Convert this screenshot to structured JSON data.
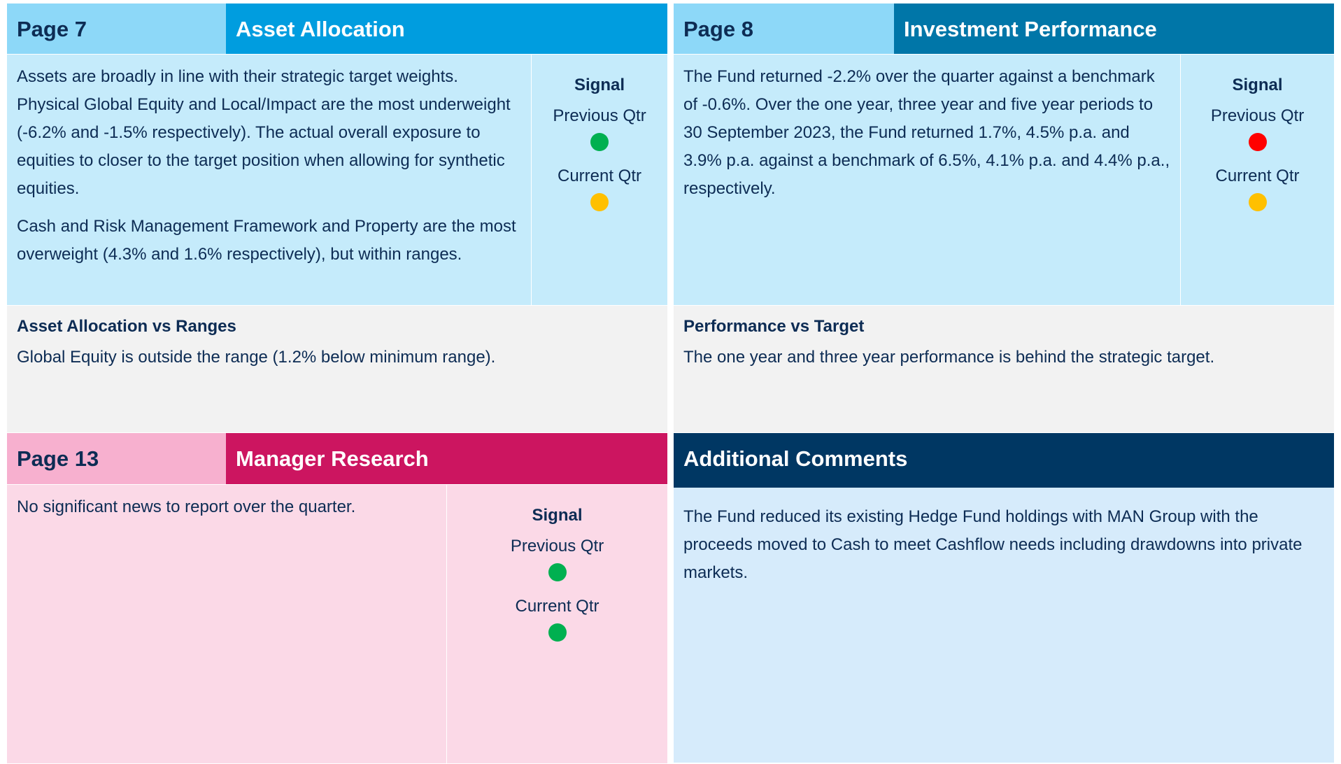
{
  "panels": [
    {
      "page": "Page 7",
      "title": "Asset Allocation",
      "paragraphs": [
        "Assets are broadly in line with their strategic target weights. Physical Global Equity and Local/Impact are the most underweight (-6.2% and -1.5% respectively). The actual overall exposure to equities to closer to the target position when allowing for synthetic equities.",
        "Cash and Risk Management Framework and Property are the most overweight (4.3% and 1.6% respectively), but within ranges."
      ],
      "signal": "Signal",
      "previous": "Previous Qtr",
      "previous_color": "#00b050",
      "current": "Current Qtr",
      "current_color": "#ffc000",
      "subheading": "Asset Allocation vs Ranges",
      "subtext": "Global Equity is outside the range (1.2% below minimum range)."
    },
    {
      "page": "Page 8",
      "title": "Investment Performance",
      "paragraphs": [
        "The Fund returned -2.2% over the quarter against a benchmark of -0.6%. Over the one year, three year and five year periods to 30 September 2023, the Fund returned 1.7%, 4.5% p.a. and 3.9% p.a. against a benchmark of 6.5%, 4.1% p.a. and 4.4% p.a., respectively."
      ],
      "signal": "Signal",
      "previous": "Previous Qtr",
      "previous_color": "#ff0000",
      "current": "Current Qtr",
      "current_color": "#ffc000",
      "subheading": "Performance vs Target",
      "subtext": "The one year and three year performance is behind the strategic target."
    },
    {
      "page": "Page 13",
      "title": "Manager Research",
      "paragraphs": [
        "No significant news to report over the quarter."
      ],
      "signal": "Signal",
      "previous": "Previous Qtr",
      "previous_color": "#00b050",
      "current": "Current Qtr",
      "current_color": "#00b050"
    }
  ],
  "additional": {
    "title": "Additional Comments",
    "text": "The Fund reduced its existing Hedge Fund holdings with MAN Group with the proceeds moved to Cash to meet Cashflow needs including drawdowns into private markets."
  }
}
